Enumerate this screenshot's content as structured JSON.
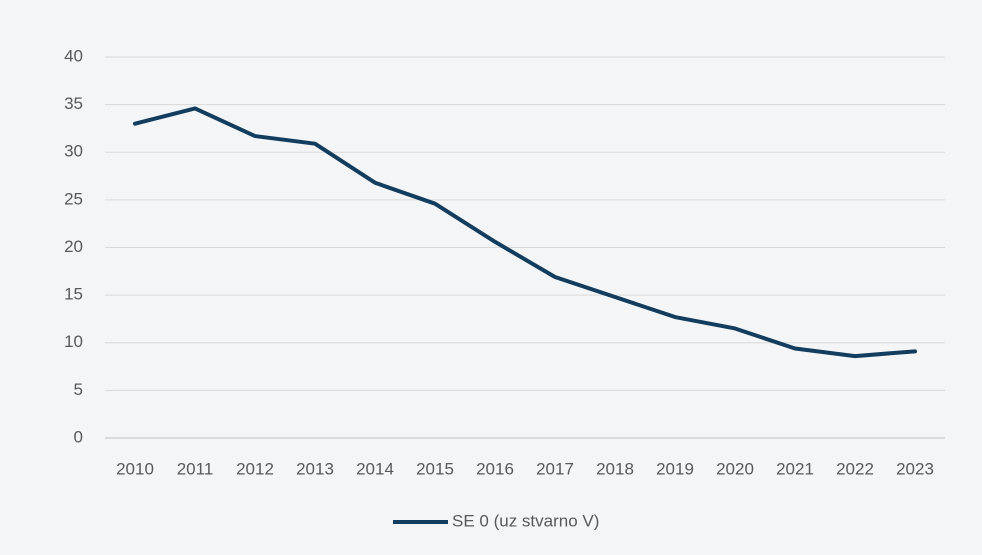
{
  "chart_data": {
    "type": "line",
    "categories": [
      "2010",
      "2011",
      "2012",
      "2013",
      "2014",
      "2015",
      "2016",
      "2017",
      "2018",
      "2019",
      "2020",
      "2021",
      "2022",
      "2023"
    ],
    "series": [
      {
        "name": "SE 0 (uz stvarno V)",
        "color": "#133d5f",
        "values": [
          33,
          34.6,
          31.7,
          30.9,
          26.8,
          24.6,
          20.6,
          16.9,
          14.8,
          12.7,
          11.5,
          9.4,
          8.6,
          9.1
        ]
      }
    ],
    "ylim": [
      0,
      40
    ],
    "yticks": [
      0,
      5,
      10,
      15,
      20,
      25,
      30,
      35,
      40
    ],
    "grid": true,
    "legend": "bottom"
  }
}
